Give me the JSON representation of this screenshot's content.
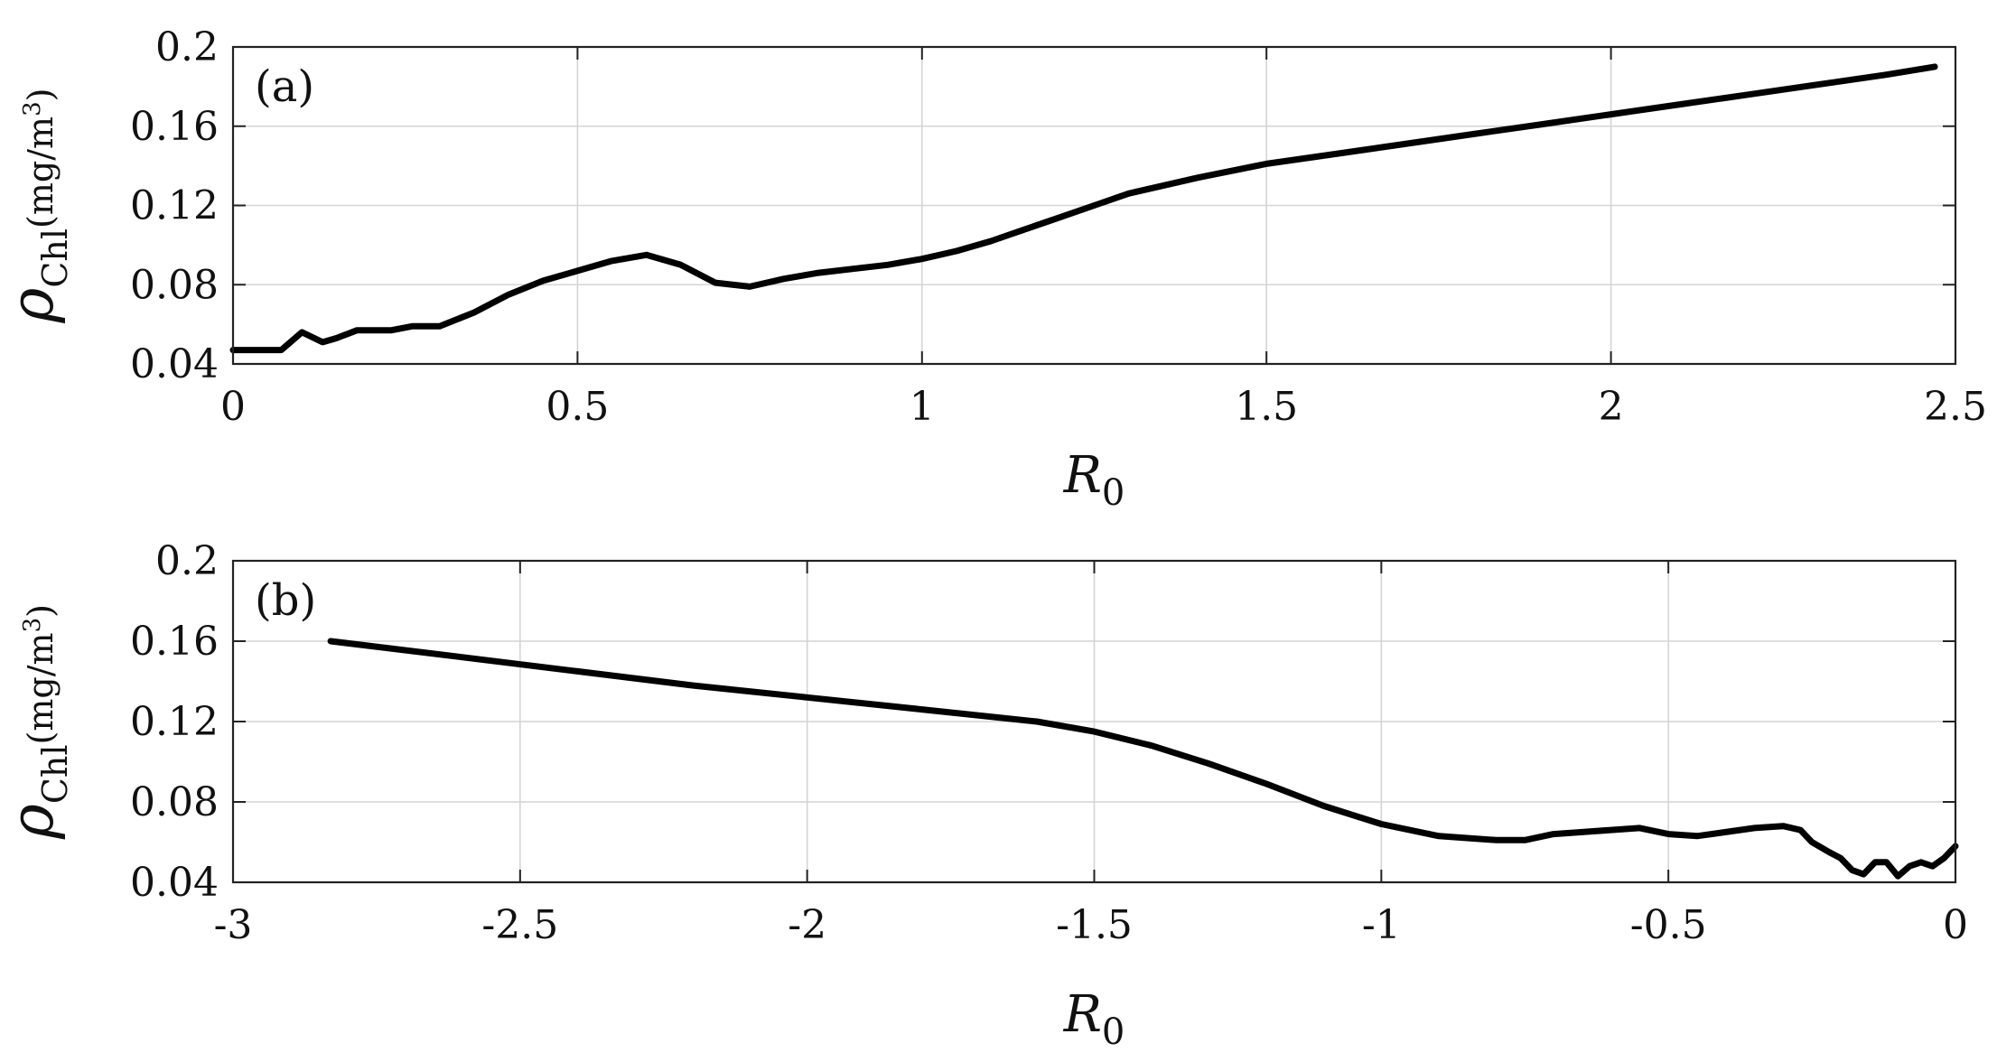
{
  "chart_data": [
    {
      "type": "line",
      "panel": "(a)",
      "xlabel_main": "R",
      "xlabel_sub": "0",
      "ylabel_main": "ρ",
      "ylabel_sub": "Chl",
      "ylabel_unit": "(mg/m",
      "ylabel_unit_sup": "3",
      "ylabel_unit_close": ")",
      "xlim": [
        0,
        2.5
      ],
      "ylim": [
        0.04,
        0.2
      ],
      "xticks": [
        0,
        0.5,
        1,
        1.5,
        2,
        2.5
      ],
      "xtick_labels": [
        "0",
        "0.5",
        "1",
        "1.5",
        "2",
        "2.5"
      ],
      "yticks": [
        0.04,
        0.08,
        0.12,
        0.16,
        0.2
      ],
      "ytick_labels": [
        "0.04",
        "0.08",
        "0.12",
        "0.16",
        "0.2"
      ],
      "grid": true,
      "series": [
        {
          "color": "#000000",
          "x": [
            0,
            0.03,
            0.07,
            0.1,
            0.13,
            0.15,
            0.18,
            0.2,
            0.23,
            0.26,
            0.3,
            0.35,
            0.4,
            0.45,
            0.5,
            0.55,
            0.6,
            0.65,
            0.7,
            0.75,
            0.8,
            0.85,
            0.9,
            0.95,
            1.0,
            1.05,
            1.1,
            1.15,
            1.2,
            1.25,
            1.3,
            1.4,
            1.5,
            1.6,
            1.7,
            1.8,
            1.9,
            2.0,
            2.1,
            2.2,
            2.3,
            2.4,
            2.47
          ],
          "y": [
            0.047,
            0.047,
            0.047,
            0.056,
            0.051,
            0.053,
            0.057,
            0.057,
            0.057,
            0.059,
            0.059,
            0.066,
            0.075,
            0.082,
            0.087,
            0.092,
            0.095,
            0.09,
            0.081,
            0.079,
            0.083,
            0.086,
            0.088,
            0.09,
            0.093,
            0.097,
            0.102,
            0.108,
            0.114,
            0.12,
            0.126,
            0.134,
            0.141,
            0.146,
            0.151,
            0.156,
            0.161,
            0.166,
            0.171,
            0.176,
            0.181,
            0.186,
            0.19
          ]
        }
      ]
    },
    {
      "type": "line",
      "panel": "(b)",
      "xlabel_main": "R",
      "xlabel_sub": "0",
      "ylabel_main": "ρ",
      "ylabel_sub": "Chl",
      "ylabel_unit": "(mg/m",
      "ylabel_unit_sup": "3",
      "ylabel_unit_close": ")",
      "xlim": [
        -3,
        0
      ],
      "ylim": [
        0.04,
        0.2
      ],
      "xticks": [
        -3,
        -2.5,
        -2,
        -1.5,
        -1,
        -0.5,
        0
      ],
      "xtick_labels": [
        "-3",
        "-2.5",
        "-2",
        "-1.5",
        "-1",
        "-0.5",
        "0"
      ],
      "yticks": [
        0.04,
        0.08,
        0.12,
        0.16,
        0.2
      ],
      "ytick_labels": [
        "0.04",
        "0.08",
        "0.12",
        "0.16",
        "0.2"
      ],
      "grid": true,
      "series": [
        {
          "color": "#000000",
          "x": [
            -2.83,
            -2.6,
            -2.4,
            -2.2,
            -2.0,
            -1.8,
            -1.6,
            -1.5,
            -1.4,
            -1.3,
            -1.2,
            -1.1,
            -1.0,
            -0.9,
            -0.8,
            -0.75,
            -0.7,
            -0.65,
            -0.6,
            -0.55,
            -0.5,
            -0.45,
            -0.4,
            -0.35,
            -0.3,
            -0.27,
            -0.25,
            -0.22,
            -0.2,
            -0.18,
            -0.16,
            -0.14,
            -0.12,
            -0.1,
            -0.08,
            -0.06,
            -0.04,
            -0.02,
            0
          ],
          "y": [
            0.16,
            0.152,
            0.145,
            0.138,
            0.132,
            0.126,
            0.12,
            0.115,
            0.108,
            0.099,
            0.089,
            0.078,
            0.069,
            0.063,
            0.061,
            0.061,
            0.064,
            0.065,
            0.066,
            0.067,
            0.064,
            0.063,
            0.065,
            0.067,
            0.068,
            0.066,
            0.06,
            0.055,
            0.052,
            0.046,
            0.044,
            0.05,
            0.05,
            0.043,
            0.048,
            0.05,
            0.048,
            0.052,
            0.058
          ]
        }
      ]
    }
  ]
}
